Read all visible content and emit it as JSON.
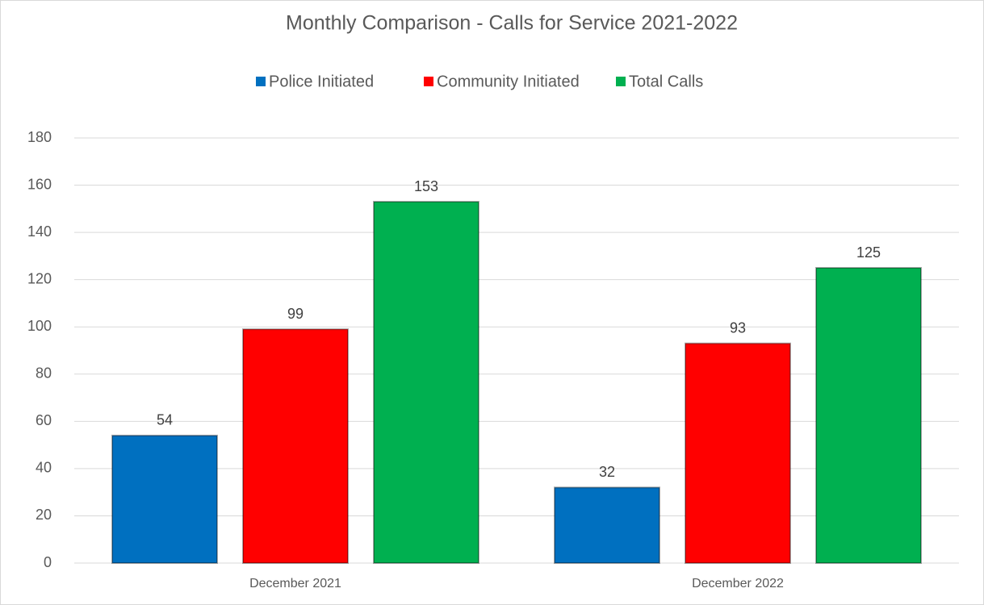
{
  "chart_data": {
    "type": "bar",
    "title": "Monthly Comparison - Calls for Service 2021-2022",
    "categories": [
      "December 2021",
      "December 2022"
    ],
    "series": [
      {
        "name": "Police Initiated",
        "color": "#0070c0",
        "values": [
          54,
          32
        ]
      },
      {
        "name": "Community Initiated",
        "color": "#ff0000",
        "values": [
          99,
          93
        ]
      },
      {
        "name": "Total Calls",
        "color": "#00b050",
        "values": [
          153,
          125
        ]
      }
    ],
    "ylim": [
      0,
      180
    ],
    "yticks": [
      0,
      20,
      40,
      60,
      80,
      100,
      120,
      140,
      160,
      180
    ],
    "grid": true,
    "legend": "top"
  }
}
